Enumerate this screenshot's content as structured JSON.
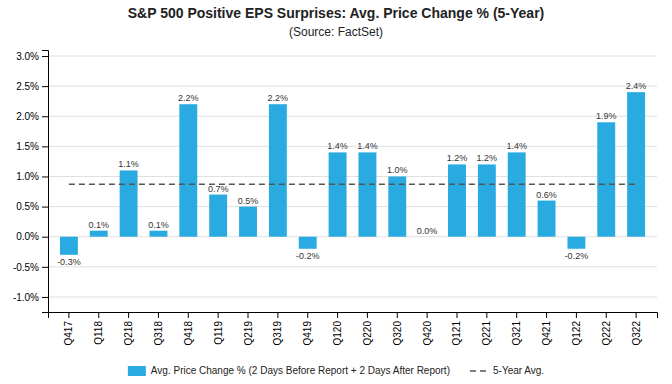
{
  "chart_data": {
    "type": "bar",
    "title": "S&P 500 Positive EPS Surprises: Avg. Price Change % (5-Year)",
    "subtitle": "(Source: FactSet)",
    "categories": [
      "Q417",
      "Q118",
      "Q218",
      "Q318",
      "Q418",
      "Q119",
      "Q219",
      "Q319",
      "Q419",
      "Q120",
      "Q220",
      "Q320",
      "Q420",
      "Q121",
      "Q221",
      "Q321",
      "Q421",
      "Q122",
      "Q222",
      "Q322"
    ],
    "series": [
      {
        "name": "Avg. Price Change % (2 Days Before Report + 2 Days After Report)",
        "type": "bar",
        "color": "#29ABE2",
        "values": [
          -0.3,
          0.1,
          1.1,
          0.1,
          2.2,
          0.7,
          0.5,
          2.2,
          -0.2,
          1.4,
          1.4,
          1.0,
          0.0,
          1.2,
          1.2,
          1.4,
          0.6,
          -0.2,
          1.9,
          2.4
        ],
        "value_labels": [
          "-0.3%",
          "0.1%",
          "1.1%",
          "0.1%",
          "2.2%",
          "0.7%",
          "0.5%",
          "2.2%",
          "-0.2%",
          "1.4%",
          "1.4%",
          "1.0%",
          "0.0%",
          "1.2%",
          "1.2%",
          "1.4%",
          "0.6%",
          "-0.2%",
          "1.9%",
          "2.4%"
        ]
      },
      {
        "name": "5-Year Avg.",
        "type": "line",
        "line_style": "dashed",
        "color": "#555555",
        "values": [
          0.87,
          0.87,
          0.87,
          0.87,
          0.87,
          0.87,
          0.87,
          0.87,
          0.87,
          0.87,
          0.87,
          0.87,
          0.87,
          0.87,
          0.87,
          0.87,
          0.87,
          0.87,
          0.87,
          0.87
        ]
      }
    ],
    "ylim": [
      -1.25,
      3.1
    ],
    "yticks": [
      {
        "value": -1.0,
        "label": "-1.0%"
      },
      {
        "value": -0.5,
        "label": "-0.5%"
      },
      {
        "value": 0.0,
        "label": "0.0%"
      },
      {
        "value": 0.5,
        "label": "0.5%"
      },
      {
        "value": 1.0,
        "label": "1.0%"
      },
      {
        "value": 1.5,
        "label": "1.5%"
      },
      {
        "value": 2.0,
        "label": "2.0%"
      },
      {
        "value": 2.5,
        "label": "2.5%"
      },
      {
        "value": 3.0,
        "label": "3.0%"
      }
    ],
    "grid": true,
    "legend": "bottom",
    "data_labels": true
  }
}
